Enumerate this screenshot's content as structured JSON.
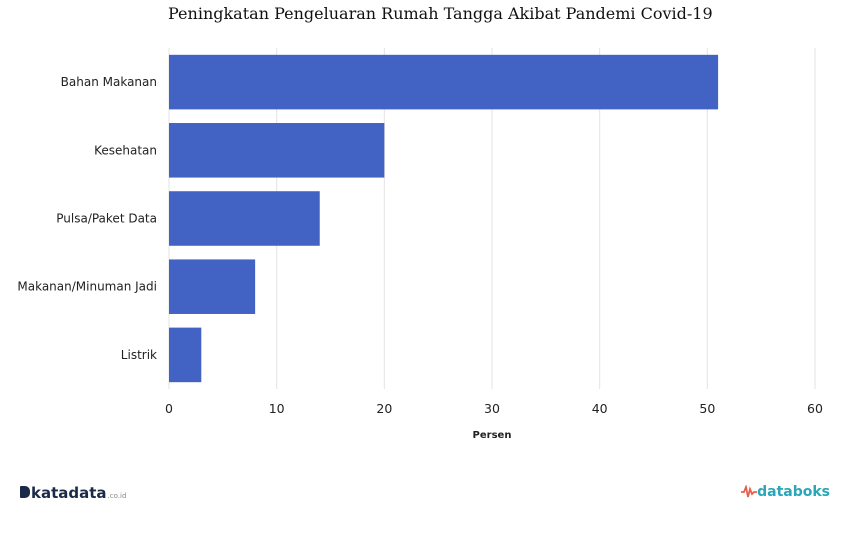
{
  "chart_data": {
    "type": "bar",
    "orientation": "horizontal",
    "title": "Peningkatan Pengeluaran Rumah Tangga Akibat Pandemi Covid-19",
    "categories": [
      "Bahan Makanan",
      "Kesehatan",
      "Pulsa/Paket Data",
      "Makanan/Minuman Jadi",
      "Listrik"
    ],
    "values": [
      51,
      20,
      14,
      8,
      3
    ],
    "xlabel": "Persen",
    "ylabel": "",
    "xlim": [
      0,
      60
    ],
    "xticks": [
      "0",
      "10",
      "20",
      "30",
      "40",
      "50",
      "60"
    ],
    "grid": true,
    "bar_color": "#4263c4"
  },
  "footer": {
    "left_logo": "katadata",
    "left_logo_suffix": ".co.id",
    "right_logo": "databoks"
  }
}
